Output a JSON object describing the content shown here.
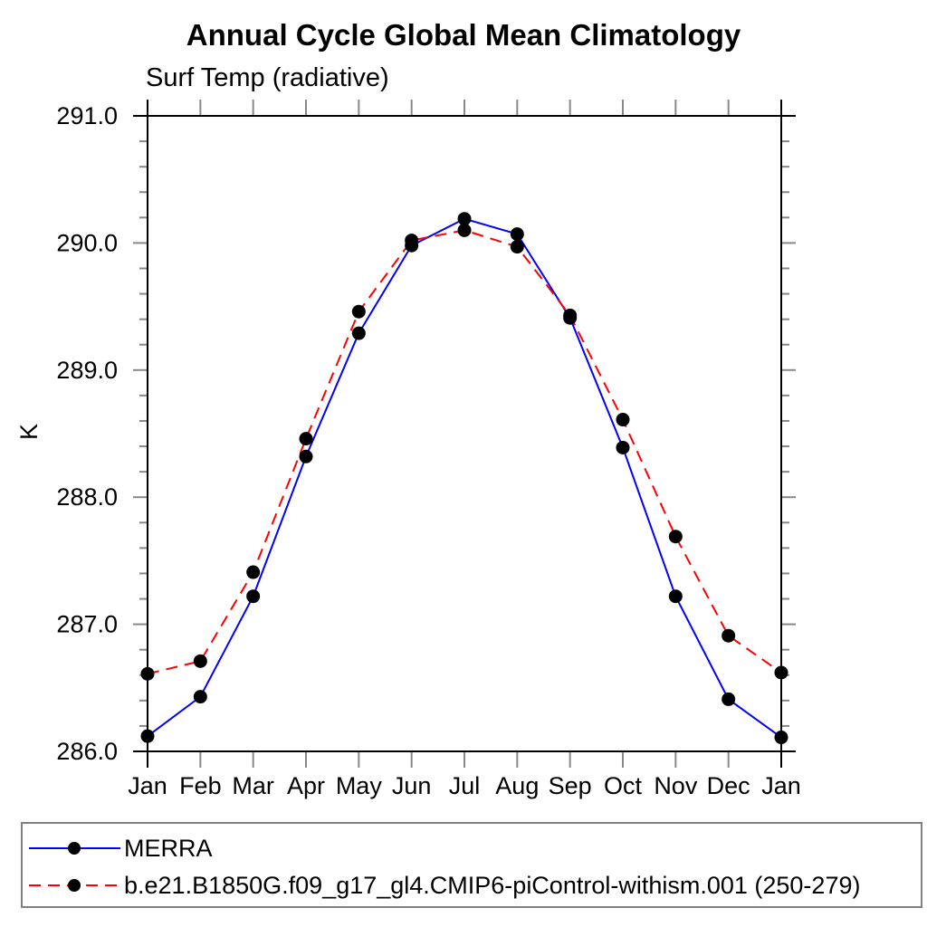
{
  "chart_data": {
    "type": "line",
    "title": "Annual Cycle Global Mean Climatology",
    "subtitle": "Surf Temp (radiative)",
    "ylabel": "K",
    "x_tick_labels": [
      "Jan",
      "Feb",
      "Mar",
      "Apr",
      "May",
      "Jun",
      "Jul",
      "Aug",
      "Sep",
      "Oct",
      "Nov",
      "Dec",
      "Jan"
    ],
    "y_tick_labels": [
      "286.0",
      "287.0",
      "288.0",
      "289.0",
      "290.0",
      "291.0"
    ],
    "ylim": [
      286.0,
      291.0
    ],
    "y_major_step": 1.0,
    "y_minor_step": 0.2,
    "grid": false,
    "legend_position": "bottom",
    "frame_color": "#000000",
    "tick_color": "#888888",
    "marker_color": "#000000",
    "series": [
      {
        "name": "MERRA",
        "color": "#0000ff",
        "style": "solid",
        "marker": "circle",
        "values": [
          286.12,
          286.43,
          287.22,
          288.32,
          289.29,
          289.98,
          290.19,
          290.07,
          289.41,
          288.39,
          287.22,
          286.41,
          286.11
        ]
      },
      {
        "name": "b.e21.B1850G.f09_g17_gl4.CMIP6-piControl-withism.001 (250-279)",
        "color": "#ff0000",
        "style": "dashed",
        "marker": "circle",
        "values": [
          286.61,
          286.71,
          287.41,
          288.46,
          289.46,
          290.02,
          290.1,
          289.97,
          289.43,
          288.61,
          287.69,
          286.91,
          286.62
        ]
      }
    ]
  }
}
